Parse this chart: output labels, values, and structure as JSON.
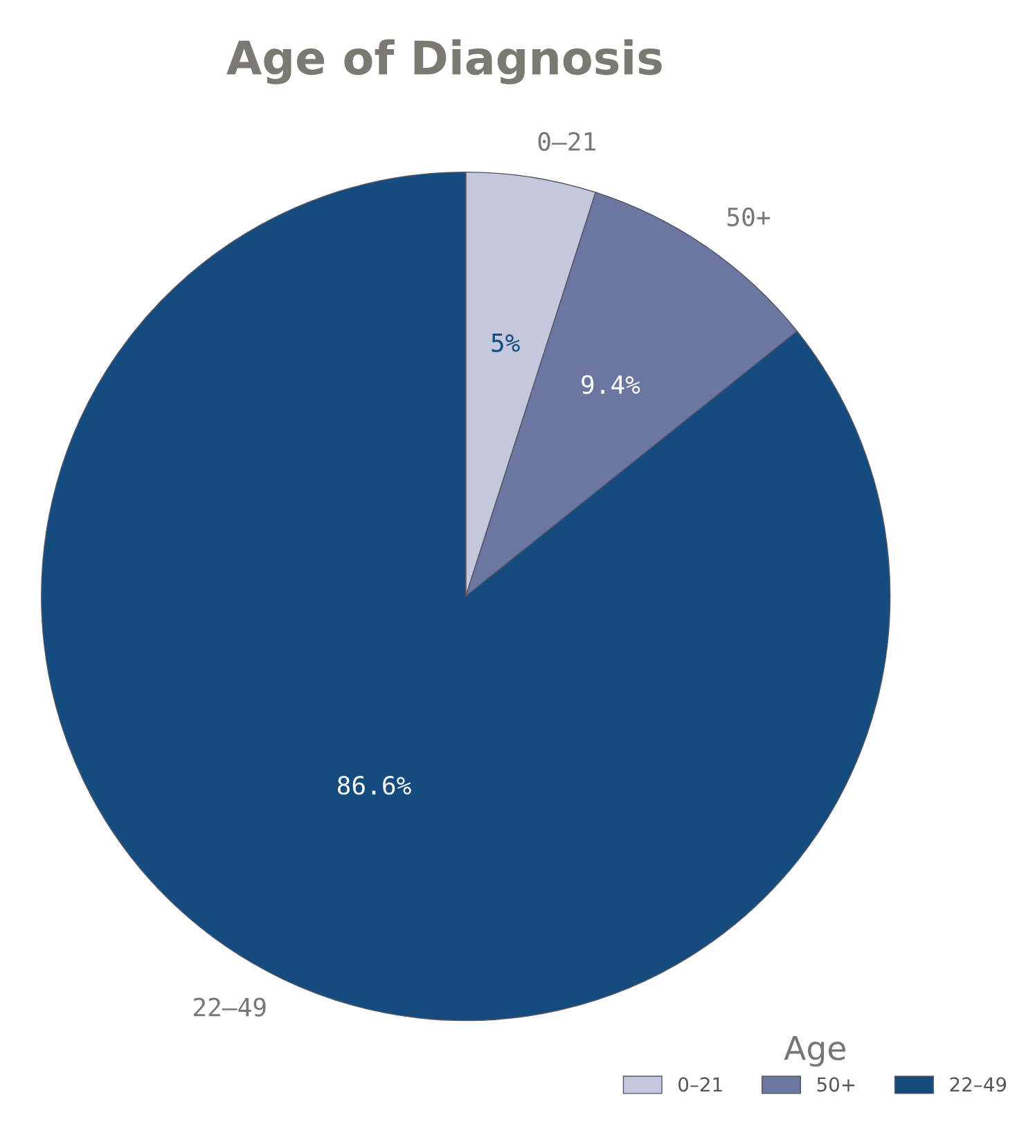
{
  "chart_data": {
    "type": "pie",
    "title": "Age of Diagnosis",
    "legend_title": "Age",
    "categories": [
      "0–21",
      "50+",
      "22–49"
    ],
    "values": [
      5,
      9.4,
      86.6
    ],
    "colors": [
      "#c5c8dc",
      "#6b77a0",
      "#154c80"
    ],
    "value_labels": [
      "5%",
      "9.4%",
      "86.6%"
    ],
    "legend": "bottom right"
  }
}
